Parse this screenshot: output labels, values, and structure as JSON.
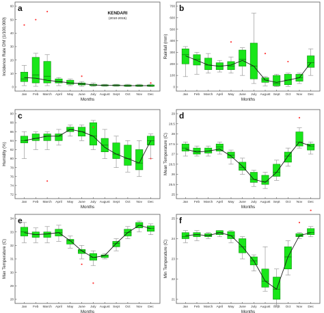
{
  "months": [
    "Jan",
    "Feb",
    "March",
    "April",
    "May",
    "June",
    "July",
    "August",
    "Sept",
    "Oct",
    "Nov",
    "Dec"
  ],
  "chart_data": [
    {
      "type": "box",
      "panel": "a",
      "title": "KENDARI",
      "subtitle": "(2010-2015)",
      "xlabel": "Months",
      "ylabel": "Incidence Rate Dhf (1/100,000)",
      "ylim": [
        0,
        60
      ],
      "yticks": [
        0,
        10,
        20,
        30,
        40,
        50,
        60
      ],
      "boxes": [
        {
          "q1": 4,
          "med": 6,
          "q3": 11,
          "lo": 1,
          "hi": 16
        },
        {
          "q1": 3,
          "med": 9,
          "q3": 22,
          "lo": 0.5,
          "hi": 25
        },
        {
          "q1": 3,
          "med": 8,
          "q3": 19,
          "lo": 1,
          "hi": 24
        },
        {
          "q1": 3,
          "med": 4,
          "q3": 6,
          "lo": 1,
          "hi": 7
        },
        {
          "q1": 2,
          "med": 3,
          "q3": 5,
          "lo": 1,
          "hi": 6
        },
        {
          "q1": 1.5,
          "med": 2,
          "q3": 3,
          "lo": 0.5,
          "hi": 4
        },
        {
          "q1": 1,
          "med": 1.5,
          "q3": 2,
          "lo": 0.5,
          "hi": 3
        },
        {
          "q1": 0.8,
          "med": 1.2,
          "q3": 1.6,
          "lo": 0.5,
          "hi": 2
        },
        {
          "q1": 0.8,
          "med": 1.2,
          "q3": 1.6,
          "lo": 0.5,
          "hi": 2
        },
        {
          "q1": 0.5,
          "med": 1,
          "q3": 1.5,
          "lo": 0.3,
          "hi": 2
        },
        {
          "q1": 0.5,
          "med": 1,
          "q3": 1.5,
          "lo": 0.3,
          "hi": 2
        },
        {
          "q1": 0.5,
          "med": 1,
          "q3": 1.5,
          "lo": 0.3,
          "hi": 2
        }
      ],
      "trend": [
        7,
        6.5,
        5,
        4,
        3,
        2.5,
        1.5,
        1.2,
        1.2,
        1,
        1,
        1
      ],
      "outliers": [
        [
          0,
          46
        ],
        [
          1,
          50
        ],
        [
          2,
          56
        ],
        [
          5,
          8
        ],
        [
          11,
          3
        ]
      ]
    },
    {
      "type": "box",
      "panel": "b",
      "xlabel": "Months",
      "ylabel": "Rainfall (mm)",
      "ylim": [
        0,
        700
      ],
      "yticks": [
        0,
        100,
        200,
        300,
        400,
        500,
        600,
        700
      ],
      "boxes": [
        {
          "q1": 200,
          "med": 280,
          "q3": 330,
          "lo": 90,
          "hi": 350
        },
        {
          "q1": 190,
          "med": 240,
          "q3": 280,
          "lo": 110,
          "hi": 300
        },
        {
          "q1": 150,
          "med": 190,
          "q3": 250,
          "lo": 120,
          "hi": 290
        },
        {
          "q1": 150,
          "med": 180,
          "q3": 210,
          "lo": 130,
          "hi": 230
        },
        {
          "q1": 150,
          "med": 180,
          "q3": 220,
          "lo": 120,
          "hi": 260
        },
        {
          "q1": 180,
          "med": 240,
          "q3": 320,
          "lo": 100,
          "hi": 340
        },
        {
          "q1": 70,
          "med": 180,
          "q3": 380,
          "lo": 30,
          "hi": 640
        },
        {
          "q1": 40,
          "med": 60,
          "q3": 80,
          "lo": 10,
          "hi": 90
        },
        {
          "q1": 10,
          "med": 30,
          "q3": 100,
          "lo": 5,
          "hi": 110
        },
        {
          "q1": 20,
          "med": 60,
          "q3": 110,
          "lo": 5,
          "hi": 120
        },
        {
          "q1": 50,
          "med": 80,
          "q3": 110,
          "lo": 30,
          "hi": 120
        },
        {
          "q1": 170,
          "med": 210,
          "q3": 270,
          "lo": 100,
          "hi": 330
        }
      ],
      "trend": [
        270,
        230,
        190,
        180,
        190,
        230,
        180,
        60,
        40,
        60,
        80,
        210
      ],
      "outliers": [
        [
          4,
          390
        ],
        [
          7,
          290
        ],
        [
          9,
          220
        ]
      ]
    },
    {
      "type": "box",
      "panel": "c",
      "xlabel": "Months",
      "ylabel": "Humidity (%)",
      "ylim": [
        72,
        90
      ],
      "yticks": [
        72,
        74,
        76,
        78,
        80,
        82,
        84,
        86,
        88,
        90
      ],
      "boxes": [
        {
          "q1": 83.5,
          "med": 84,
          "q3": 85,
          "lo": 80,
          "hi": 86
        },
        {
          "q1": 84,
          "med": 84.5,
          "q3": 85.5,
          "lo": 82,
          "hi": 86
        },
        {
          "q1": 84,
          "med": 85,
          "q3": 85.5,
          "lo": 82,
          "hi": 86
        },
        {
          "q1": 84,
          "med": 85,
          "q3": 85.5,
          "lo": 83,
          "hi": 86.5
        },
        {
          "q1": 86,
          "med": 86.5,
          "q3": 87,
          "lo": 85,
          "hi": 87.5
        },
        {
          "q1": 85,
          "med": 86,
          "q3": 87,
          "lo": 84,
          "hi": 87.5
        },
        {
          "q1": 83,
          "med": 85,
          "q3": 88,
          "lo": 82,
          "hi": 88.5
        },
        {
          "q1": 81.5,
          "med": 83,
          "q3": 84.5,
          "lo": 80,
          "hi": 86.5
        },
        {
          "q1": 80,
          "med": 81,
          "q3": 83.5,
          "lo": 78,
          "hi": 85
        },
        {
          "q1": 78.5,
          "med": 80,
          "q3": 83,
          "lo": 77,
          "hi": 84
        },
        {
          "q1": 77.5,
          "med": 79,
          "q3": 82,
          "lo": 76,
          "hi": 84
        },
        {
          "q1": 83,
          "med": 84,
          "q3": 85,
          "lo": 80,
          "hi": 85.5
        }
      ],
      "trend": [
        84,
        84.5,
        85,
        85,
        86.5,
        86,
        85,
        82.5,
        81,
        80,
        79,
        84
      ],
      "outliers": [
        [
          2,
          75
        ],
        [
          6,
          87
        ],
        [
          11,
          80
        ]
      ]
    },
    {
      "type": "box",
      "panel": "d",
      "xlabel": "Months",
      "ylabel": "Mean Temperature (C)",
      "ylim": [
        25,
        29
      ],
      "yticks": [
        25,
        25.5,
        26,
        26.5,
        27,
        27.5,
        28,
        28.5,
        29
      ],
      "boxes": [
        {
          "q1": 27.15,
          "med": 27.3,
          "q3": 27.5,
          "lo": 26.9,
          "hi": 27.6
        },
        {
          "q1": 27.0,
          "med": 27.15,
          "q3": 27.3,
          "lo": 26.9,
          "hi": 27.4
        },
        {
          "q1": 27.05,
          "med": 27.15,
          "q3": 27.3,
          "lo": 26.9,
          "hi": 27.4
        },
        {
          "q1": 27.15,
          "med": 27.35,
          "q3": 27.5,
          "lo": 27.0,
          "hi": 27.6
        },
        {
          "q1": 26.8,
          "med": 26.95,
          "q3": 27.1,
          "lo": 26.5,
          "hi": 27.2
        },
        {
          "q1": 26.2,
          "med": 26.35,
          "q3": 26.6,
          "lo": 26.0,
          "hi": 26.8
        },
        {
          "q1": 25.6,
          "med": 25.75,
          "q3": 26.1,
          "lo": 25.4,
          "hi": 26.2
        },
        {
          "q1": 25.5,
          "med": 25.65,
          "q3": 25.95,
          "lo": 25.3,
          "hi": 26.1
        },
        {
          "q1": 25.9,
          "med": 26.1,
          "q3": 26.5,
          "lo": 25.7,
          "hi": 26.7
        },
        {
          "q1": 26.6,
          "med": 26.9,
          "q3": 27.1,
          "lo": 26.4,
          "hi": 27.3
        },
        {
          "q1": 27.4,
          "med": 27.6,
          "q3": 28.1,
          "lo": 27.3,
          "hi": 28.3
        },
        {
          "q1": 27.2,
          "med": 27.4,
          "q3": 27.5,
          "lo": 27.0,
          "hi": 27.6
        }
      ],
      "trend": [
        27.25,
        27.1,
        27.15,
        27.25,
        26.9,
        26.4,
        25.75,
        25.6,
        26.1,
        26.9,
        27.6,
        27.4
      ],
      "outliers": [
        [
          10,
          28.8
        ]
      ]
    },
    {
      "type": "box",
      "panel": "e",
      "xlabel": "Months",
      "ylabel": "Max Temperature (C)",
      "ylim": [
        28,
        34
      ],
      "yticks": [
        28,
        29,
        30,
        31,
        32,
        33,
        34
      ],
      "boxes": [
        {
          "q1": 32.7,
          "med": 33.0,
          "q3": 33.35,
          "lo": 32.2,
          "hi": 33.7
        },
        {
          "q1": 32.6,
          "med": 32.8,
          "q3": 33.0,
          "lo": 32.2,
          "hi": 33.3
        },
        {
          "q1": 32.6,
          "med": 32.85,
          "q3": 33.0,
          "lo": 32.2,
          "hi": 33.4
        },
        {
          "q1": 32.7,
          "med": 32.95,
          "q3": 33.2,
          "lo": 32.3,
          "hi": 33.5
        },
        {
          "q1": 32.1,
          "med": 32.35,
          "q3": 32.45,
          "lo": 31.8,
          "hi": 32.7
        },
        {
          "q1": 31.4,
          "med": 31.6,
          "q3": 31.7,
          "lo": 31.0,
          "hi": 32.0
        },
        {
          "q1": 30.9,
          "med": 31.1,
          "q3": 31.4,
          "lo": 30.5,
          "hi": 31.6
        },
        {
          "q1": 31.1,
          "med": 31.25,
          "q3": 31.3,
          "lo": 31.0,
          "hi": 31.4
        },
        {
          "q1": 31.9,
          "med": 32.15,
          "q3": 32.3,
          "lo": 31.6,
          "hi": 32.5
        },
        {
          "q1": 32.7,
          "med": 32.95,
          "q3": 33.2,
          "lo": 32.5,
          "hi": 33.4
        },
        {
          "q1": 33.3,
          "med": 33.5,
          "q3": 33.7,
          "lo": 33.0,
          "hi": 33.8
        },
        {
          "q1": 33.05,
          "med": 33.25,
          "q3": 33.45,
          "lo": 32.8,
          "hi": 33.6
        }
      ],
      "trend": [
        32.95,
        32.8,
        32.85,
        32.95,
        32.35,
        31.6,
        31.1,
        31.25,
        32.15,
        32.95,
        33.5,
        33.25
      ],
      "outliers": [
        [
          5,
          30.6
        ],
        [
          6,
          29.2
        ]
      ]
    },
    {
      "type": "box",
      "panel": "f",
      "xlabel": "Months",
      "ylabel": "Min Temperature (C)",
      "ylim": [
        21,
        25
      ],
      "yticks": [
        21,
        22,
        23,
        24,
        25
      ],
      "boxes": [
        {
          "q1": 24.0,
          "med": 24.1,
          "q3": 24.3,
          "lo": 23.8,
          "hi": 24.4
        },
        {
          "q1": 24.1,
          "med": 24.2,
          "q3": 24.3,
          "lo": 23.9,
          "hi": 24.4
        },
        {
          "q1": 24.1,
          "med": 24.15,
          "q3": 24.25,
          "lo": 24.0,
          "hi": 24.3
        },
        {
          "q1": 24.2,
          "med": 24.3,
          "q3": 24.4,
          "lo": 24.1,
          "hi": 24.4
        },
        {
          "q1": 24.0,
          "med": 24.15,
          "q3": 24.35,
          "lo": 23.8,
          "hi": 24.4
        },
        {
          "q1": 23.3,
          "med": 23.6,
          "q3": 24.0,
          "lo": 23.0,
          "hi": 24.1
        },
        {
          "q1": 22.7,
          "med": 22.9,
          "q3": 23.1,
          "lo": 22.4,
          "hi": 23.2
        },
        {
          "q1": 21.6,
          "med": 21.9,
          "q3": 22.5,
          "lo": 21.4,
          "hi": 23.6
        },
        {
          "q1": 21.0,
          "med": 21.5,
          "q3": 22.1,
          "lo": 20.7,
          "hi": 22.5
        },
        {
          "q1": 22.5,
          "med": 23.1,
          "q3": 23.6,
          "lo": 22.2,
          "hi": 23.9
        },
        {
          "q1": 24.1,
          "med": 24.15,
          "q3": 24.25,
          "lo": 24.0,
          "hi": 24.3
        },
        {
          "q1": 24.2,
          "med": 24.3,
          "q3": 24.5,
          "lo": 24.1,
          "hi": 24.6
        }
      ],
      "trend": [
        24.15,
        24.2,
        24.15,
        24.3,
        24.15,
        23.6,
        22.9,
        21.9,
        21.5,
        23.1,
        24.15,
        24.3
      ],
      "outliers": [
        [
          10,
          24.8
        ],
        [
          11,
          25.4
        ]
      ]
    }
  ]
}
